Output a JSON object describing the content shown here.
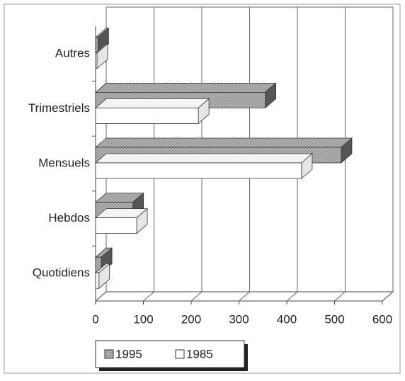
{
  "chart_data": {
    "type": "bar3d_horizontal",
    "categories": [
      "Quotidiens",
      "Hebdos",
      "Mensuels",
      "Trimestriels",
      "Autres"
    ],
    "series": [
      {
        "name": "1995",
        "color": "#b4b4b4",
        "values": [
          12,
          78,
          514,
          355,
          5
        ]
      },
      {
        "name": "1985",
        "color": "#ffffff",
        "values": [
          7,
          86,
          431,
          215,
          3
        ]
      }
    ],
    "xlim": [
      0,
      600
    ],
    "xticks": [
      0,
      100,
      200,
      300,
      400,
      500,
      600
    ],
    "grid": true,
    "legend": "bottom"
  }
}
